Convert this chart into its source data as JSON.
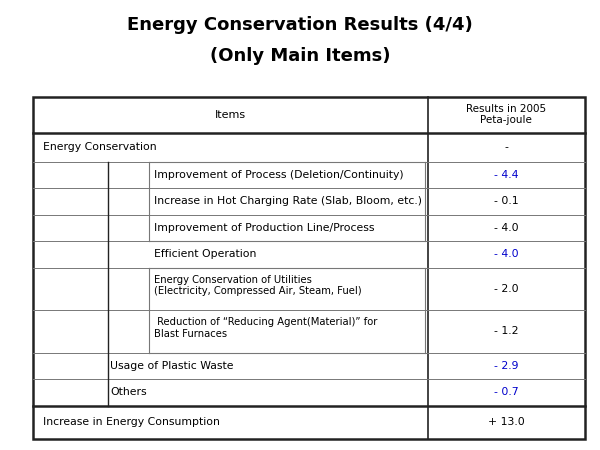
{
  "title_line1": "Energy Conservation Results (4/4)",
  "title_line2": "(Only Main Items)",
  "title_fontsize": 13,
  "header_col1": "Items",
  "header_col2": "Results in 2005\nPeta-joule",
  "rows": [
    {
      "label": "Energy Conservation",
      "value": "-",
      "indent": 0,
      "bold": false,
      "value_bold": false,
      "value_blue": false,
      "two_line": false
    },
    {
      "label": "Improvement of Process (Deletion/Continuity)",
      "value": "- 4.4",
      "indent": 2,
      "bold": false,
      "value_bold": false,
      "value_blue": true,
      "two_line": false
    },
    {
      "label": "Increase in Hot Charging Rate (Slab, Bloom, etc.)",
      "value": "- 0.1",
      "indent": 2,
      "bold": false,
      "value_bold": false,
      "value_blue": false,
      "two_line": false
    },
    {
      "label": "Improvement of Production Line/Process",
      "value": "- 4.0",
      "indent": 2,
      "bold": false,
      "value_bold": false,
      "value_blue": false,
      "two_line": false
    },
    {
      "label": "Efficient Operation",
      "value": "- 4.0",
      "indent": 2,
      "bold": false,
      "value_bold": false,
      "value_blue": true,
      "two_line": false
    },
    {
      "label": "Energy Conservation of Utilities\n(Electricity, Compressed Air, Steam, Fuel)",
      "value": "- 2.0",
      "indent": 2,
      "bold": false,
      "value_bold": false,
      "value_blue": false,
      "two_line": true
    },
    {
      "label": " Reduction of “Reducing Agent(Material)” for\nBlast Furnaces",
      "value": "- 1.2",
      "indent": 2,
      "bold": false,
      "value_bold": false,
      "value_blue": false,
      "two_line": true
    },
    {
      "label": "Usage of Plastic Waste",
      "value": "- 2.9",
      "indent": 1,
      "bold": false,
      "value_bold": false,
      "value_blue": true,
      "two_line": false
    },
    {
      "label": "Others",
      "value": "- 0.7",
      "indent": 1,
      "bold": false,
      "value_bold": false,
      "value_blue": true,
      "two_line": false
    },
    {
      "label": "Increase in Energy Consumption",
      "value": "+ 13.0",
      "indent": 0,
      "bold": false,
      "value_bold": false,
      "value_blue": false,
      "two_line": false
    }
  ],
  "col_split": 0.715,
  "outer_border_color": "#222222",
  "inner_border_color": "#777777",
  "bg_color": "#ffffff",
  "text_color": "#000000",
  "blue_color": "#0000cc",
  "font_family": "DejaVu Sans",
  "row_heights_raw": [
    1.35,
    1.1,
    1.0,
    1.0,
    1.0,
    1.0,
    1.6,
    1.6,
    1.0,
    1.0,
    1.25
  ],
  "tl": 0.055,
  "tr": 0.975,
  "tt": 0.785,
  "tb": 0.025
}
